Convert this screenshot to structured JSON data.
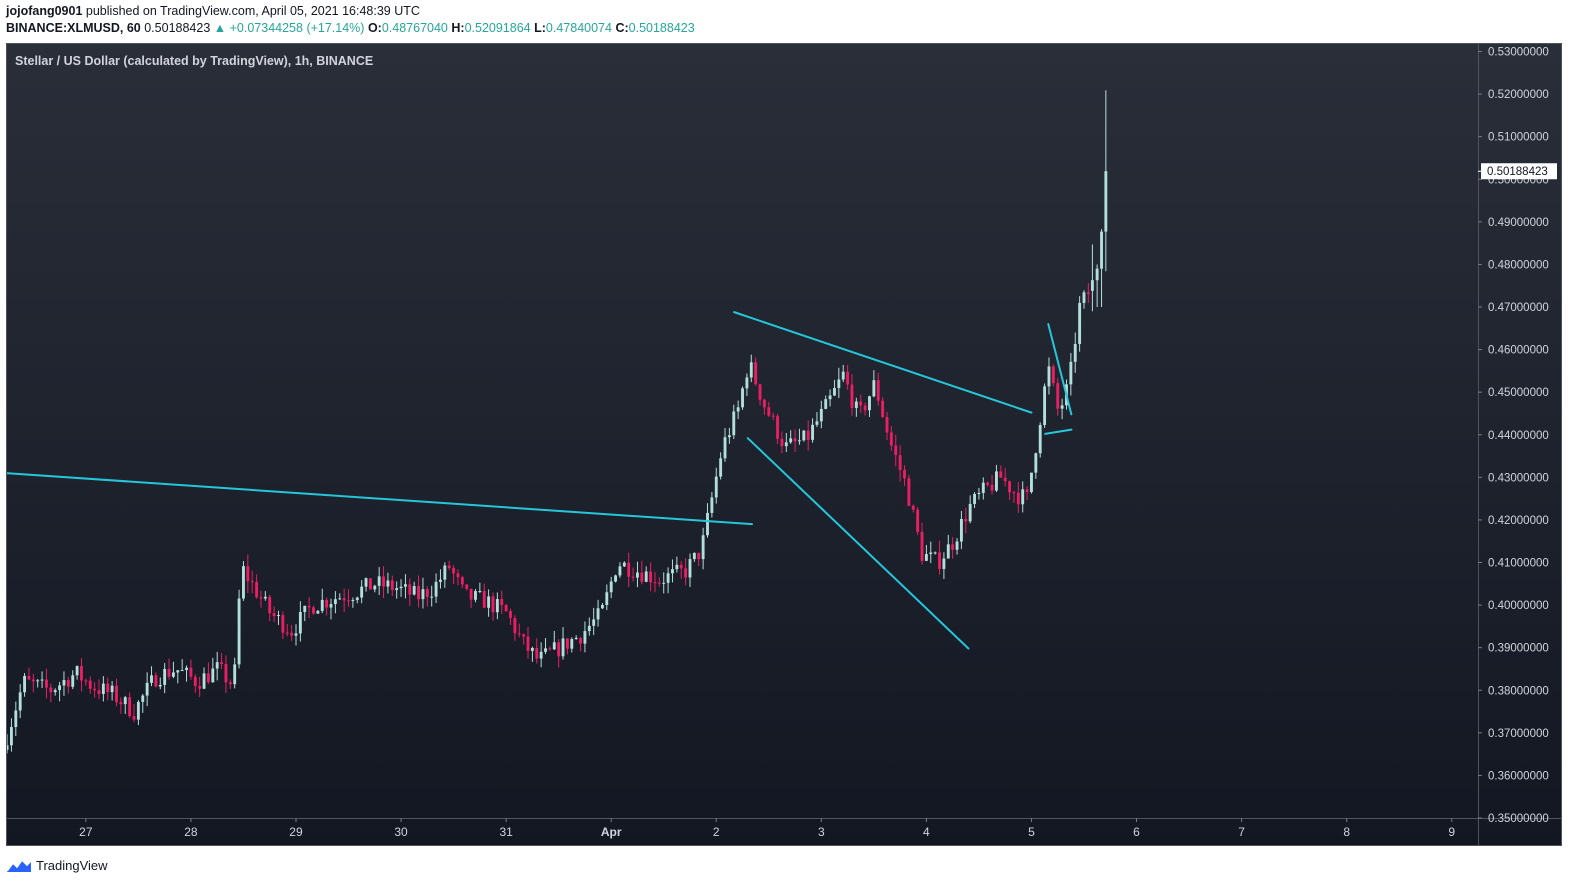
{
  "header": {
    "author": "jojofang0901",
    "published_text": "published on TradingView.com, April 05, 2021 16:48:39 UTC",
    "symbol": "BINANCE:XLMUSD, 60",
    "last": "0.50188423",
    "arrow": "▲",
    "change": "+0.07344258 (+17.14%)",
    "o_label": "O:",
    "o": "0.48767040",
    "h_label": "H:",
    "h": "0.52091864",
    "l_label": "L:",
    "l": "0.47840074",
    "c_label": "C:",
    "c": "0.50188423"
  },
  "footer": {
    "brand": "TradingView"
  },
  "colors": {
    "up": "#b2dfdb",
    "down": "#e91e63",
    "trendline": "#26c6da",
    "bg_top": "#2a2e39",
    "bg_bottom": "#131722",
    "text": "#d1d4dc"
  },
  "chart_data": {
    "type": "candlestick",
    "title": "Stellar / US Dollar (calculated by TradingView), 1h, BINANCE",
    "x_ticks": [
      "27",
      "28",
      "29",
      "30",
      "31",
      "Apr",
      "2",
      "3",
      "4",
      "5",
      "6",
      "7",
      "8",
      "9"
    ],
    "y_ticks": [
      "0.53000000",
      "0.52000000",
      "0.51000000",
      "0.50000000",
      "0.49000000",
      "0.48000000",
      "0.47000000",
      "0.46000000",
      "0.45000000",
      "0.44000000",
      "0.43000000",
      "0.42000000",
      "0.41000000",
      "0.40000000",
      "0.39000000",
      "0.38000000",
      "0.37000000",
      "0.36000000",
      "0.35000000"
    ],
    "ylim": [
      0.35,
      0.532
    ],
    "x_start_day": 26.24,
    "x_end_day": 40.25,
    "last_price": 0.50188423,
    "last_price_label": "0.50188423",
    "price_path": [
      [
        26.25,
        0.366
      ],
      [
        26.45,
        0.382
      ],
      [
        26.7,
        0.38
      ],
      [
        26.95,
        0.384
      ],
      [
        27.1,
        0.381
      ],
      [
        27.3,
        0.379
      ],
      [
        27.5,
        0.375
      ],
      [
        27.7,
        0.383
      ],
      [
        27.9,
        0.385
      ],
      [
        28.1,
        0.382
      ],
      [
        28.3,
        0.385
      ],
      [
        28.45,
        0.381
      ],
      [
        28.52,
        0.409
      ],
      [
        28.62,
        0.405
      ],
      [
        28.8,
        0.398
      ],
      [
        29.0,
        0.394
      ],
      [
        29.2,
        0.4
      ],
      [
        29.45,
        0.402
      ],
      [
        29.6,
        0.403
      ],
      [
        29.8,
        0.405
      ],
      [
        30.0,
        0.404
      ],
      [
        30.2,
        0.402
      ],
      [
        30.35,
        0.404
      ],
      [
        30.5,
        0.409
      ],
      [
        30.65,
        0.402
      ],
      [
        30.85,
        0.401
      ],
      [
        31.05,
        0.398
      ],
      [
        31.2,
        0.391
      ],
      [
        31.35,
        0.387
      ],
      [
        31.55,
        0.39
      ],
      [
        31.75,
        0.393
      ],
      [
        31.95,
        0.398
      ],
      [
        32.1,
        0.41
      ],
      [
        32.3,
        0.408
      ],
      [
        32.5,
        0.406
      ],
      [
        32.75,
        0.408
      ],
      [
        32.9,
        0.413
      ],
      [
        33.0,
        0.425
      ],
      [
        33.1,
        0.437
      ],
      [
        33.25,
        0.446
      ],
      [
        33.35,
        0.457
      ],
      [
        33.5,
        0.447
      ],
      [
        33.7,
        0.437
      ],
      [
        33.9,
        0.439
      ],
      [
        34.1,
        0.447
      ],
      [
        34.25,
        0.454
      ],
      [
        34.4,
        0.444
      ],
      [
        34.55,
        0.452
      ],
      [
        34.7,
        0.438
      ],
      [
        34.85,
        0.428
      ],
      [
        35.0,
        0.412
      ],
      [
        35.15,
        0.41
      ],
      [
        35.3,
        0.415
      ],
      [
        35.45,
        0.423
      ],
      [
        35.6,
        0.427
      ],
      [
        35.75,
        0.43
      ],
      [
        35.9,
        0.426
      ],
      [
        36.0,
        0.425
      ],
      [
        36.1,
        0.44
      ],
      [
        36.2,
        0.456
      ],
      [
        36.3,
        0.445
      ],
      [
        36.4,
        0.452
      ],
      [
        36.5,
        0.47
      ],
      [
        36.6,
        0.474
      ],
      [
        36.67,
        0.48
      ],
      [
        36.75,
        0.5019
      ]
    ],
    "final_candles": [
      {
        "d": 36.58,
        "o": 0.4738,
        "h": 0.4847,
        "l": 0.469,
        "c": 0.4763
      },
      {
        "d": 36.625,
        "o": 0.4763,
        "h": 0.48,
        "l": 0.47,
        "c": 0.479
      },
      {
        "d": 36.667,
        "o": 0.479,
        "h": 0.4883,
        "l": 0.47,
        "c": 0.4877
      },
      {
        "d": 36.708,
        "o": 0.4877,
        "h": 0.5209,
        "l": 0.4784,
        "c": 0.5019
      }
    ],
    "trendlines": [
      {
        "x1": 26.24,
        "y1": 0.431,
        "x2": 33.34,
        "y2": 0.419
      },
      {
        "x1": 33.17,
        "y1": 0.4688,
        "x2": 36.0,
        "y2": 0.4452
      },
      {
        "x1": 33.3,
        "y1": 0.4392,
        "x2": 35.4,
        "y2": 0.3898
      },
      {
        "x1": 36.16,
        "y1": 0.466,
        "x2": 36.38,
        "y2": 0.4448
      },
      {
        "x1": 36.13,
        "y1": 0.4402,
        "x2": 36.38,
        "y2": 0.4412
      }
    ]
  }
}
